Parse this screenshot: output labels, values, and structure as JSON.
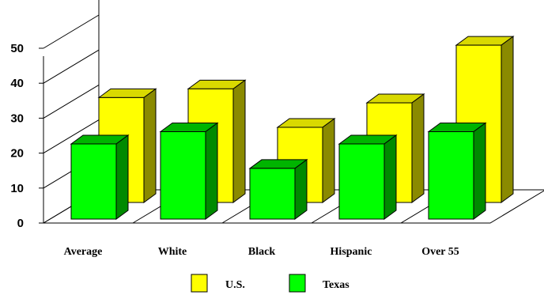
{
  "chart_data": {
    "type": "bar",
    "categories": [
      "Average",
      "White",
      "Black",
      "Hispanic",
      "Over 55"
    ],
    "series": [
      {
        "name": "U.S.",
        "values": [
          30,
          32.5,
          21.5,
          28.5,
          45
        ]
      },
      {
        "name": "Texas",
        "values": [
          21.5,
          25,
          14.5,
          21.5,
          25
        ]
      }
    ],
    "ylim": [
      0,
      50
    ],
    "yticks": [
      0,
      10,
      20,
      30,
      40,
      50
    ],
    "legend_position": "bottom",
    "grid": false,
    "title": "",
    "xlabel": "",
    "ylabel": "",
    "colors": {
      "us_front": "#ffff00",
      "us_top": "#d9d900",
      "us_side": "#8a8a00",
      "tx_front": "#00ff00",
      "tx_top": "#00b400",
      "tx_side": "#008a00",
      "axis": "#000000"
    }
  }
}
